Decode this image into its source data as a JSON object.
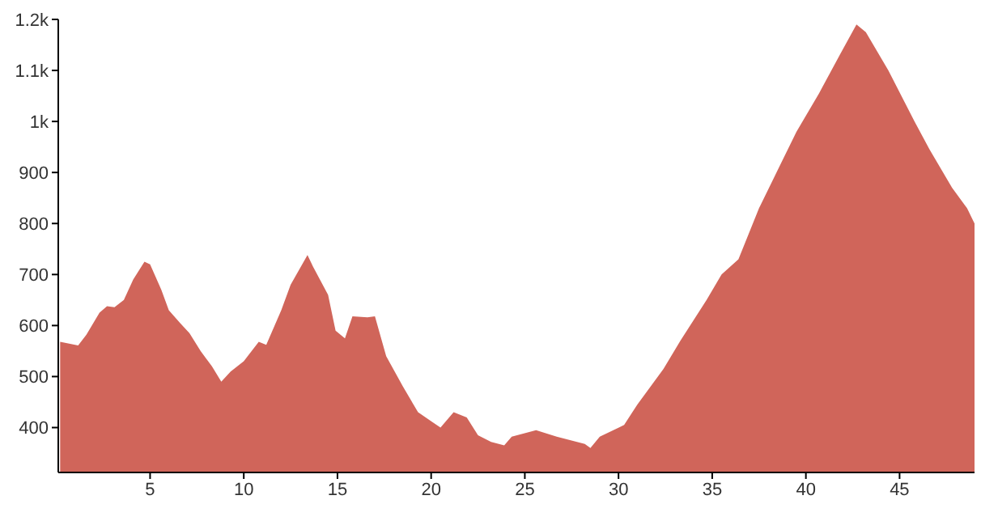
{
  "chart_data": {
    "type": "area",
    "color": "#d0655a",
    "x": [
      0.2,
      1.16,
      1.6,
      2.3,
      2.7,
      3.1,
      3.6,
      4.1,
      4.7,
      5.0,
      5.6,
      6.0,
      6.6,
      7.1,
      7.7,
      8.3,
      8.8,
      9.3,
      10.0,
      10.8,
      11.2,
      12.0,
      12.5,
      13.4,
      13.7,
      14.5,
      14.9,
      15.4,
      15.8,
      16.6,
      17.0,
      17.6,
      18.5,
      19.3,
      20.1,
      20.5,
      21.2,
      21.9,
      22.5,
      23.2,
      23.9,
      24.3,
      25.6,
      26.7,
      28.2,
      28.5,
      29.0,
      30.3,
      31.0,
      32.4,
      33.3,
      34.7,
      35.5,
      36.4,
      37.5,
      38.7,
      39.5,
      40.7,
      41.8,
      42.7,
      43.2,
      44.4,
      45.8,
      46.6,
      47.8,
      48.6,
      49.0
    ],
    "values": [
      568,
      561,
      582,
      625,
      638,
      636,
      650,
      690,
      725,
      720,
      670,
      630,
      605,
      585,
      550,
      520,
      490,
      510,
      530,
      568,
      562,
      630,
      680,
      738,
      715,
      660,
      590,
      575,
      618,
      616,
      618,
      540,
      480,
      430,
      410,
      400,
      430,
      420,
      385,
      372,
      365,
      382,
      395,
      382,
      368,
      360,
      382,
      405,
      445,
      515,
      570,
      650,
      700,
      730,
      830,
      920,
      980,
      1055,
      1130,
      1190,
      1175,
      1100,
      1000,
      945,
      870,
      830,
      800
    ],
    "xlim": [
      0.1,
      49
    ],
    "xticks": [
      5,
      10,
      15,
      20,
      25,
      30,
      35,
      40,
      45
    ],
    "ylim": [
      312,
      1200
    ],
    "yticks": [
      400,
      500,
      600,
      700,
      800,
      900,
      {
        "value": 1000,
        "label": "1k"
      },
      {
        "value": 1100,
        "label": "1.1k"
      },
      {
        "value": 1200,
        "label": "1.2k"
      }
    ],
    "grid": false,
    "legend": false
  }
}
